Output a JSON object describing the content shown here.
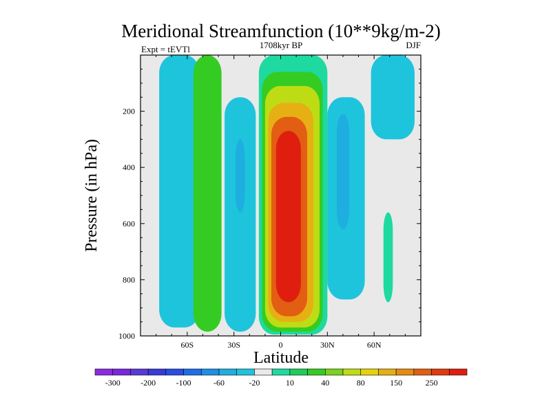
{
  "chart_data": {
    "type": "heatmap",
    "title": "Meridional Streamfunction (10**9kg/m-2)",
    "left_string": "Expt = tEVTl",
    "center_string": "1708kyr BP",
    "right_string": "DJF",
    "xlabel": "Latitude",
    "ylabel": "Pressure (in hPa)",
    "xlim": [
      -90,
      90
    ],
    "ylim": [
      1000,
      0
    ],
    "x_ticks": [
      {
        "value": -60,
        "label": "60S"
      },
      {
        "value": -30,
        "label": "30S"
      },
      {
        "value": 0,
        "label": "0"
      },
      {
        "value": 30,
        "label": "30N"
      },
      {
        "value": 60,
        "label": "60N"
      }
    ],
    "y_ticks": [
      {
        "value": 200,
        "label": "200"
      },
      {
        "value": 400,
        "label": "400"
      },
      {
        "value": 600,
        "label": "600"
      },
      {
        "value": 800,
        "label": "800"
      },
      {
        "value": 1000,
        "label": "1000"
      }
    ],
    "colorbar": {
      "colors": [
        "#8a2be2",
        "#7a28dc",
        "#5a3ad6",
        "#3a3ad8",
        "#2a4ee0",
        "#1e6ee6",
        "#1e8ee6",
        "#1eaee0",
        "#1ec4dc",
        "#e9e9e9",
        "#1ed9a0",
        "#1ecc5a",
        "#34cc22",
        "#7ad11e",
        "#bedc14",
        "#e6d20a",
        "#e6b014",
        "#e68a12",
        "#e25e12",
        "#e03a10",
        "#e01e10"
      ],
      "labels": [
        "-300",
        "-200",
        "-100",
        "-60",
        "-20",
        "10",
        "40",
        "80",
        "150",
        "250"
      ]
    },
    "contour_regions": [
      {
        "name": "southern-outer-cell",
        "level": -20,
        "color": "#1ec4dc",
        "lat": [
          -78,
          -52
        ],
        "p": [
          0,
          970
        ]
      },
      {
        "name": "southern-ferrel-cell",
        "level": 10,
        "color": "#34cc22",
        "lat": [
          -56,
          -38
        ],
        "p": [
          0,
          985
        ]
      },
      {
        "name": "southern-mid-cell",
        "level": -20,
        "color": "#1ec4dc",
        "lat": [
          -36,
          -16
        ],
        "p": [
          150,
          985
        ]
      },
      {
        "name": "southern-mid-core",
        "level": -60,
        "color": "#1eaee0",
        "lat": [
          -29,
          -23
        ],
        "p": [
          300,
          560
        ]
      },
      {
        "name": "hadley-cell",
        "level": 10,
        "color": "#1ed9a0",
        "lat": [
          -14,
          30
        ],
        "p": [
          0,
          995
        ]
      },
      {
        "name": "hadley-40",
        "level": 40,
        "color": "#34cc22",
        "lat": [
          -12,
          27
        ],
        "p": [
          60,
          985
        ]
      },
      {
        "name": "hadley-80",
        "level": 80,
        "color": "#bedc14",
        "lat": [
          -10,
          25
        ],
        "p": [
          110,
          970
        ]
      },
      {
        "name": "hadley-150",
        "level": 150,
        "color": "#e6b014",
        "lat": [
          -8,
          21
        ],
        "p": [
          170,
          950
        ]
      },
      {
        "name": "hadley-250",
        "level": 250,
        "color": "#e25e12",
        "lat": [
          -6,
          17
        ],
        "p": [
          220,
          930
        ]
      },
      {
        "name": "hadley-core",
        "level": 300,
        "color": "#e01e10",
        "lat": [
          -3,
          13
        ],
        "p": [
          270,
          880
        ]
      },
      {
        "name": "northern-mid-cell",
        "level": -20,
        "color": "#1ec4dc",
        "lat": [
          30,
          54
        ],
        "p": [
          150,
          870
        ]
      },
      {
        "name": "northern-mid-core",
        "level": -60,
        "color": "#1eaee0",
        "lat": [
          36,
          44
        ],
        "p": [
          210,
          620
        ]
      },
      {
        "name": "northern-outer-cell",
        "level": -20,
        "color": "#1ec4dc",
        "lat": [
          58,
          86
        ],
        "p": [
          0,
          300
        ]
      },
      {
        "name": "northern-polar-cell",
        "level": 10,
        "color": "#1ed9a0",
        "lat": [
          66,
          72
        ],
        "p": [
          560,
          880
        ]
      }
    ]
  }
}
